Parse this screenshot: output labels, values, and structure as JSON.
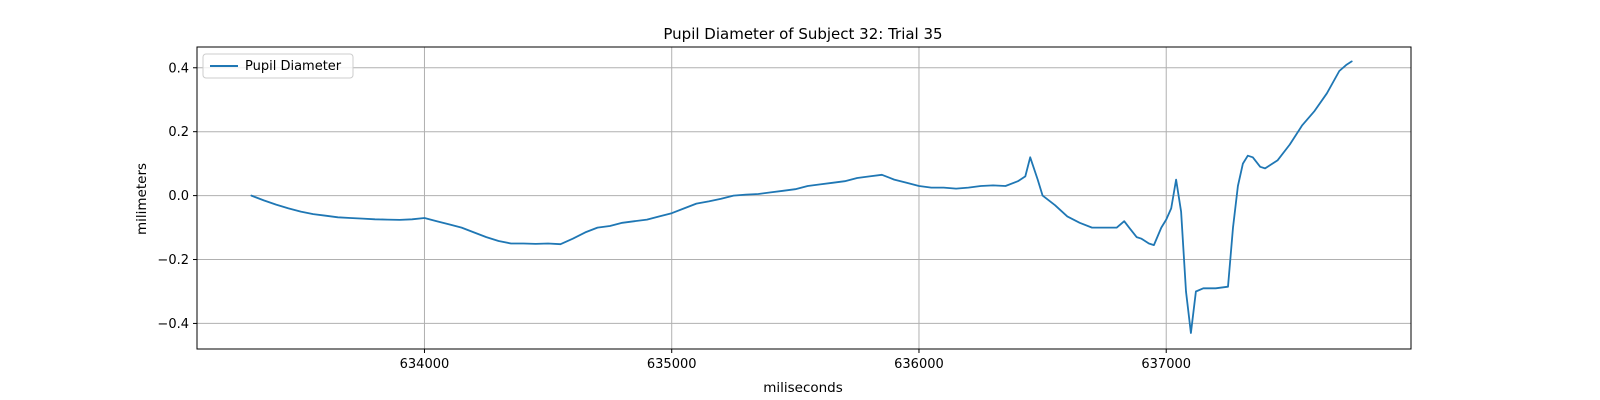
{
  "chart_data": {
    "type": "line",
    "title": "Pupil Diameter of Subject 32: Trial 35",
    "xlabel": "miliseconds",
    "ylabel": "milimeters",
    "xlim": [
      633080,
      637990
    ],
    "ylim": [
      -0.48,
      0.465
    ],
    "xticks": [
      634000,
      635000,
      636000,
      637000
    ],
    "yticks": [
      -0.4,
      -0.2,
      0.0,
      0.2,
      0.4
    ],
    "ytick_labels": [
      "−0.4",
      "−0.2",
      "0.0",
      "0.2",
      "0.4"
    ],
    "grid": true,
    "legend_position": "upper-left",
    "color": "#1f77b4",
    "series": [
      {
        "name": "Pupil Diameter",
        "x": [
          633300,
          633350,
          633400,
          633450,
          633500,
          633550,
          633600,
          633650,
          633700,
          633750,
          633800,
          633850,
          633900,
          633950,
          634000,
          634050,
          634100,
          634150,
          634200,
          634250,
          634300,
          634350,
          634400,
          634450,
          634500,
          634550,
          634600,
          634650,
          634700,
          634750,
          634800,
          634850,
          634900,
          634950,
          635000,
          635050,
          635100,
          635150,
          635200,
          635250,
          635300,
          635350,
          635400,
          635450,
          635500,
          635550,
          635600,
          635650,
          635700,
          635750,
          635800,
          635850,
          635900,
          635950,
          636000,
          636050,
          636100,
          636150,
          636200,
          636250,
          636300,
          636350,
          636400,
          636430,
          636450,
          636480,
          636500,
          636550,
          636600,
          636650,
          636700,
          636750,
          636800,
          636830,
          636850,
          636880,
          636900,
          636930,
          636950,
          636980,
          637000,
          637020,
          637040,
          637060,
          637080,
          637100,
          637120,
          637150,
          637200,
          637250,
          637270,
          637290,
          637310,
          637330,
          637350,
          637380,
          637400,
          637450,
          637500,
          637550,
          637600,
          637650,
          637700,
          637730,
          637750
        ],
        "y": [
          0.0,
          -0.015,
          -0.028,
          -0.04,
          -0.05,
          -0.058,
          -0.063,
          -0.068,
          -0.07,
          -0.072,
          -0.074,
          -0.075,
          -0.076,
          -0.074,
          -0.07,
          -0.08,
          -0.09,
          -0.1,
          -0.115,
          -0.13,
          -0.142,
          -0.15,
          -0.15,
          -0.151,
          -0.15,
          -0.152,
          -0.135,
          -0.115,
          -0.1,
          -0.095,
          -0.085,
          -0.08,
          -0.075,
          -0.065,
          -0.055,
          -0.04,
          -0.025,
          -0.018,
          -0.01,
          0.0,
          0.003,
          0.005,
          0.01,
          0.015,
          0.02,
          0.03,
          0.035,
          0.04,
          0.045,
          0.055,
          0.06,
          0.065,
          0.05,
          0.04,
          0.03,
          0.025,
          0.025,
          0.022,
          0.025,
          0.03,
          0.032,
          0.03,
          0.045,
          0.06,
          0.12,
          0.05,
          0.0,
          -0.03,
          -0.065,
          -0.085,
          -0.1,
          -0.1,
          -0.1,
          -0.08,
          -0.1,
          -0.13,
          -0.135,
          -0.15,
          -0.155,
          -0.1,
          -0.075,
          -0.04,
          0.05,
          -0.05,
          -0.3,
          -0.43,
          -0.3,
          -0.29,
          -0.29,
          -0.285,
          -0.1,
          0.03,
          0.1,
          0.125,
          0.12,
          0.09,
          0.085,
          0.11,
          0.16,
          0.22,
          0.265,
          0.32,
          0.39,
          0.41,
          0.42
        ]
      }
    ]
  }
}
